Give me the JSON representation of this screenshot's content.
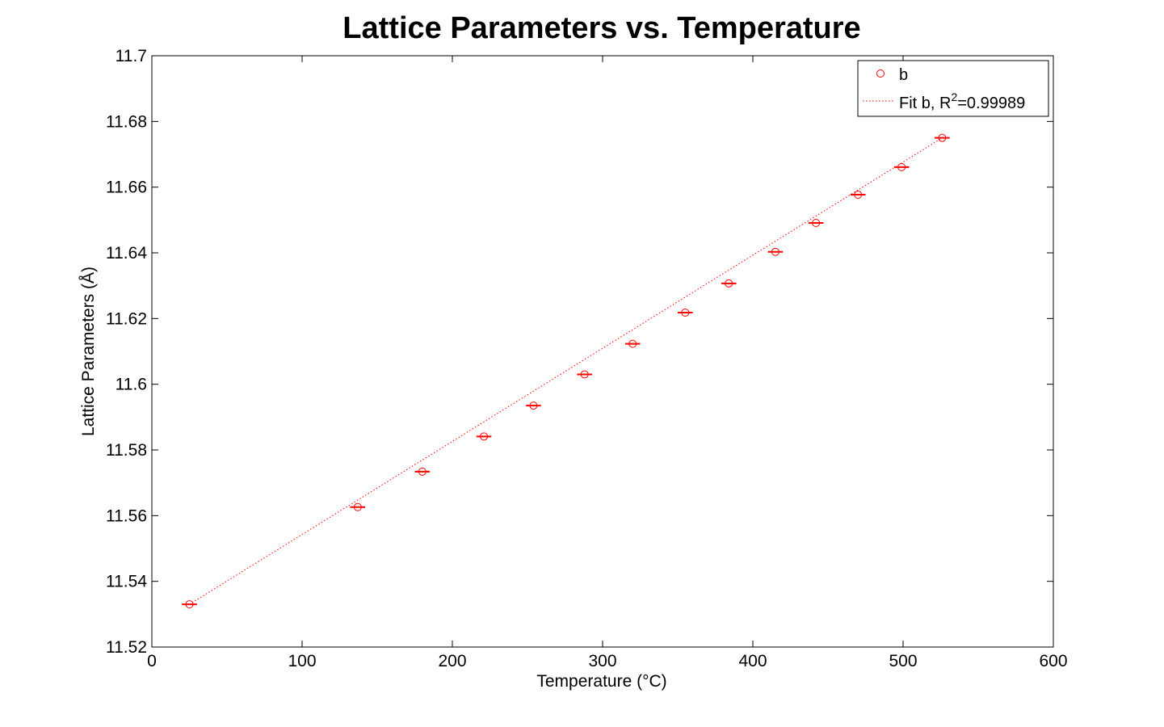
{
  "chart_data": {
    "type": "scatter",
    "title": "Lattice Parameters vs. Temperature",
    "xlabel": "Temperature (°C)",
    "ylabel": "Lattice Parameters (Å)",
    "xlim": [
      0,
      600
    ],
    "ylim": [
      11.52,
      11.7
    ],
    "x_ticks": [
      "0",
      "100",
      "200",
      "300",
      "400",
      "500",
      "600"
    ],
    "y_ticks": [
      "11.52",
      "11.54",
      "11.56",
      "11.58",
      "11.6",
      "11.62",
      "11.64",
      "11.66",
      "11.68",
      "11.7"
    ],
    "grid": false,
    "legend_position": "top-right",
    "series": [
      {
        "name": "b",
        "kind": "markers",
        "marker": "circle",
        "color": "#ff0000",
        "x": [
          25,
          137,
          180,
          221,
          254,
          288,
          320,
          355,
          384,
          415,
          442,
          470,
          499,
          526
        ],
        "y": [
          11.533,
          11.5626,
          11.5734,
          11.5841,
          11.5935,
          11.603,
          11.6123,
          11.6218,
          11.6307,
          11.6403,
          11.6491,
          11.6577,
          11.6661,
          11.675
        ],
        "x_error": [
          5,
          5,
          5,
          5,
          5,
          5,
          5,
          5,
          5,
          5,
          5,
          5,
          5,
          5
        ]
      },
      {
        "name": "Fit b, R",
        "name_superscript": "2",
        "name_suffix": "=0.99989",
        "kind": "dotted-line",
        "color": "#ff0000",
        "x": [
          25,
          526
        ],
        "y": [
          11.533,
          11.675
        ]
      }
    ]
  }
}
